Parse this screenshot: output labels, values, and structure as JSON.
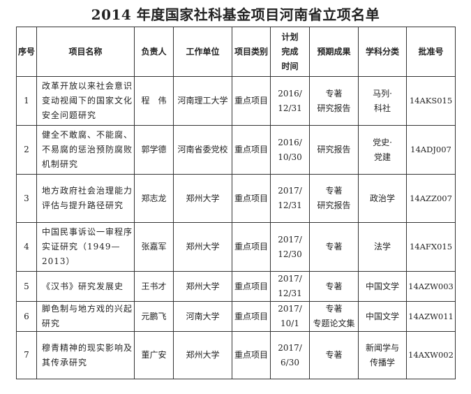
{
  "title": "2014 年度国家社科基金项目河南省立项名单",
  "headers": [
    "序号",
    "项目名称",
    "负责人",
    "工作单位",
    "项目类别",
    "计划\n完成\n时间",
    "预期成果",
    "学科分类",
    "批准号"
  ],
  "rows": [
    {
      "no": "1",
      "name": "改革开放以来社会意识变动视阈下的国家文化安全问题研究",
      "leader": "程　伟",
      "unit": "河南理工大学",
      "type": "重点项目",
      "date": "2016/\n12/31",
      "result": "专著\n研究报告",
      "subject": "马列·\n科社",
      "id": "14AKS015"
    },
    {
      "no": "2",
      "name": "健全不敢腐、不能腐、不易腐的惩治预防腐败机制研究",
      "leader": "郭学德",
      "unit": "河南省委党校",
      "type": "重点项目",
      "date": "2016/\n10/30",
      "result": "研究报告",
      "subject": "党史·\n党建",
      "id": "14ADJ007"
    },
    {
      "no": "3",
      "name": "地方政府社会治理能力评估与提升路径研究",
      "leader": "郑志龙",
      "unit": "郑州大学",
      "type": "重点项目",
      "date": "2017/\n12/31",
      "result": "专著\n研究报告",
      "subject": "政治学",
      "id": "14AZZ007"
    },
    {
      "no": "4",
      "name": "中国民事诉讼一审程序实证研究（1949—2013）",
      "leader": "张嘉军",
      "unit": "郑州大学",
      "type": "重点项目",
      "date": "2017/\n12/30",
      "result": "专著",
      "subject": "法学",
      "id": "14AFX015"
    },
    {
      "no": "5",
      "name": "《汉书》研究发展史",
      "leader": "王书才",
      "unit": "郑州大学",
      "type": "重点项目",
      "date": "2017/\n12/31",
      "result": "专著",
      "subject": "中国文学",
      "id": "14AZW003"
    },
    {
      "no": "6",
      "name": "脚色制与地方戏的兴起研究",
      "leader": "元鹏飞",
      "unit": "河南大学",
      "type": "重点项目",
      "date": "2017/\n10/1",
      "result": "专著\n专题论文集",
      "subject": "中国文学",
      "id": "14AZW011"
    },
    {
      "no": "7",
      "name": "穆青精神的现实影响及其传承研究",
      "leader": "董广安",
      "unit": "郑州大学",
      "type": "重点项目",
      "date": "2017/\n6/30",
      "result": "专著",
      "subject": "新闻学与\n传播学",
      "id": "14AXW002"
    }
  ]
}
